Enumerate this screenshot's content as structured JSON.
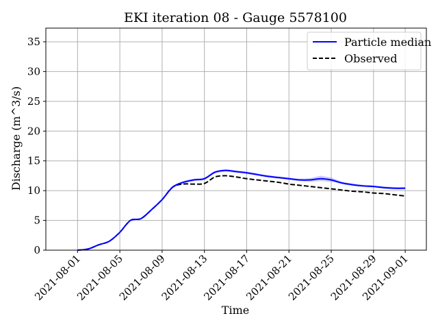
{
  "chart_data": {
    "type": "line",
    "title": "EKI iteration 08 - Gauge 5578100",
    "xlabel": "Time",
    "ylabel": "Discharge (m^3/s)",
    "x_tick_labels": [
      "2021-08-01",
      "2021-08-05",
      "2021-08-09",
      "2021-08-13",
      "2021-08-17",
      "2021-08-21",
      "2021-08-25",
      "2021-08-29",
      "2021-09-01"
    ],
    "x_tick_dates": [
      "2021-08-01",
      "2021-08-05",
      "2021-08-09",
      "2021-08-13",
      "2021-08-17",
      "2021-08-21",
      "2021-08-25",
      "2021-08-29",
      "2021-09-01"
    ],
    "xlim": [
      "2021-07-29",
      "2021-09-03"
    ],
    "y_ticks": [
      0,
      5,
      10,
      15,
      20,
      25,
      30,
      35
    ],
    "ylim": [
      0,
      37.3
    ],
    "grid": true,
    "legend_position": "top-right",
    "series": [
      {
        "name": "Particle median",
        "color": "#0000ff",
        "style": "solid",
        "band_color": "#8080ff",
        "x": [
          "2021-08-01",
          "2021-08-02",
          "2021-08-03",
          "2021-08-04",
          "2021-08-05",
          "2021-08-06",
          "2021-08-07",
          "2021-08-08",
          "2021-08-09",
          "2021-08-10",
          "2021-08-11",
          "2021-08-12",
          "2021-08-13",
          "2021-08-14",
          "2021-08-15",
          "2021-08-16",
          "2021-08-17",
          "2021-08-18",
          "2021-08-19",
          "2021-08-20",
          "2021-08-21",
          "2021-08-22",
          "2021-08-23",
          "2021-08-24",
          "2021-08-25",
          "2021-08-26",
          "2021-08-27",
          "2021-08-28",
          "2021-08-29",
          "2021-08-30",
          "2021-08-31",
          "2021-09-01"
        ],
        "y": [
          0.0,
          0.2,
          0.9,
          1.5,
          3.0,
          5.0,
          5.3,
          6.8,
          8.5,
          10.6,
          11.4,
          11.8,
          12.0,
          13.1,
          13.4,
          13.2,
          13.0,
          12.7,
          12.4,
          12.2,
          12.0,
          11.8,
          11.8,
          12.0,
          11.8,
          11.3,
          11.0,
          10.8,
          10.7,
          10.5,
          10.4,
          10.4
        ],
        "band_lower": [
          0.0,
          0.2,
          0.9,
          1.5,
          3.0,
          4.9,
          5.2,
          6.7,
          8.4,
          10.4,
          11.2,
          11.6,
          11.8,
          12.9,
          13.2,
          13.0,
          12.8,
          12.5,
          12.2,
          12.0,
          11.8,
          11.6,
          11.5,
          11.6,
          11.5,
          11.1,
          10.8,
          10.6,
          10.5,
          10.3,
          10.2,
          10.2
        ],
        "band_upper": [
          0.0,
          0.2,
          0.9,
          1.5,
          3.0,
          5.1,
          5.4,
          6.9,
          8.6,
          10.8,
          11.6,
          12.0,
          12.2,
          13.3,
          13.6,
          13.4,
          13.2,
          12.9,
          12.6,
          12.4,
          12.2,
          12.0,
          12.1,
          12.5,
          12.2,
          11.5,
          11.2,
          11.0,
          10.9,
          10.7,
          10.6,
          10.6
        ]
      },
      {
        "name": "Observed",
        "color": "#000000",
        "style": "dashed",
        "x": [
          "2021-08-01",
          "2021-08-02",
          "2021-08-03",
          "2021-08-04",
          "2021-08-05",
          "2021-08-06",
          "2021-08-07",
          "2021-08-08",
          "2021-08-09",
          "2021-08-10",
          "2021-08-11",
          "2021-08-12",
          "2021-08-13",
          "2021-08-14",
          "2021-08-15",
          "2021-08-16",
          "2021-08-17",
          "2021-08-18",
          "2021-08-19",
          "2021-08-20",
          "2021-08-21",
          "2021-08-22",
          "2021-08-23",
          "2021-08-24",
          "2021-08-25",
          "2021-08-26",
          "2021-08-27",
          "2021-08-28",
          "2021-08-29",
          "2021-08-30",
          "2021-08-31",
          "2021-09-01"
        ],
        "y": [
          0.0,
          0.2,
          0.9,
          1.5,
          3.0,
          5.0,
          5.3,
          6.8,
          8.5,
          10.6,
          11.1,
          11.1,
          11.2,
          12.3,
          12.5,
          12.3,
          12.0,
          11.8,
          11.6,
          11.4,
          11.1,
          10.9,
          10.7,
          10.5,
          10.3,
          10.1,
          9.9,
          9.8,
          9.6,
          9.5,
          9.3,
          9.1
        ]
      }
    ]
  }
}
